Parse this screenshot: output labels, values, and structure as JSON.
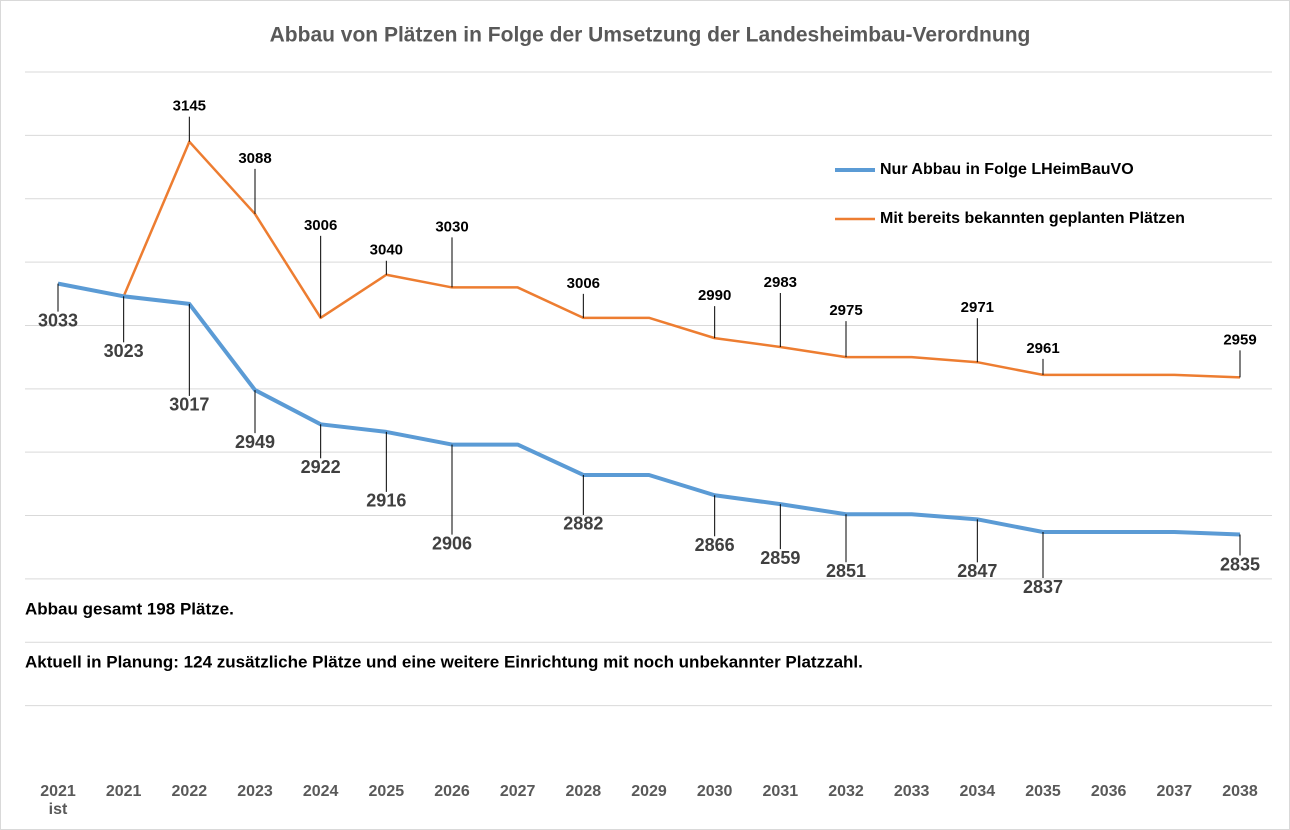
{
  "chart_data": {
    "type": "line",
    "title": "Abbau von Plätzen in Folge der Umsetzung der Landesheimbau-Verordnung",
    "categories": [
      "2021\nist",
      "2021",
      "2022",
      "2023",
      "2024",
      "2025",
      "2026",
      "2027",
      "2028",
      "2029",
      "2030",
      "2031",
      "2032",
      "2033",
      "2034",
      "2035",
      "2036",
      "2037",
      "2038"
    ],
    "series": [
      {
        "name": "Nur Abbau in Folge LHeimBauVO",
        "color": "#5b9bd5",
        "values": [
          3033,
          3023,
          3017,
          2949,
          2922,
          2916,
          2906,
          2906,
          2882,
          2882,
          2866,
          2859,
          2851,
          2851,
          2847,
          2837,
          2837,
          2837,
          2835
        ],
        "value_labels": [
          "3033",
          "3023",
          "3017",
          "2949",
          "2922",
          "2916",
          "2906",
          null,
          "2882",
          null,
          "2866",
          "2859",
          "2851",
          null,
          "2847",
          "2837",
          null,
          null,
          "2835"
        ]
      },
      {
        "name": "Mit bereits bekannten geplanten Plätzen",
        "color": "#ed7d31",
        "values": [
          3033,
          3023,
          3145,
          3088,
          3006,
          3040,
          3030,
          3030,
          3006,
          3006,
          2990,
          2983,
          2975,
          2975,
          2971,
          2961,
          2961,
          2961,
          2959
        ],
        "value_labels": [
          null,
          null,
          "3145",
          "3088",
          "3006",
          "3040",
          "3030",
          null,
          "3006",
          null,
          "2990",
          "2983",
          "2975",
          null,
          "2971",
          "2961",
          null,
          null,
          "2959"
        ]
      }
    ],
    "ylim": [
      2650,
      3200
    ],
    "yticks": [
      2700,
      2750,
      2800,
      2850,
      2900,
      2950,
      3000,
      3050,
      3100,
      3150,
      3200
    ],
    "grid": true,
    "legend": "upper right",
    "annotations": [
      "Abbau gesamt 198 Plätze.",
      "Aktuell in Planung: 124 zusätzliche Plätze und eine weitere Einrichtung mit noch unbekannter Platzzahl."
    ]
  }
}
